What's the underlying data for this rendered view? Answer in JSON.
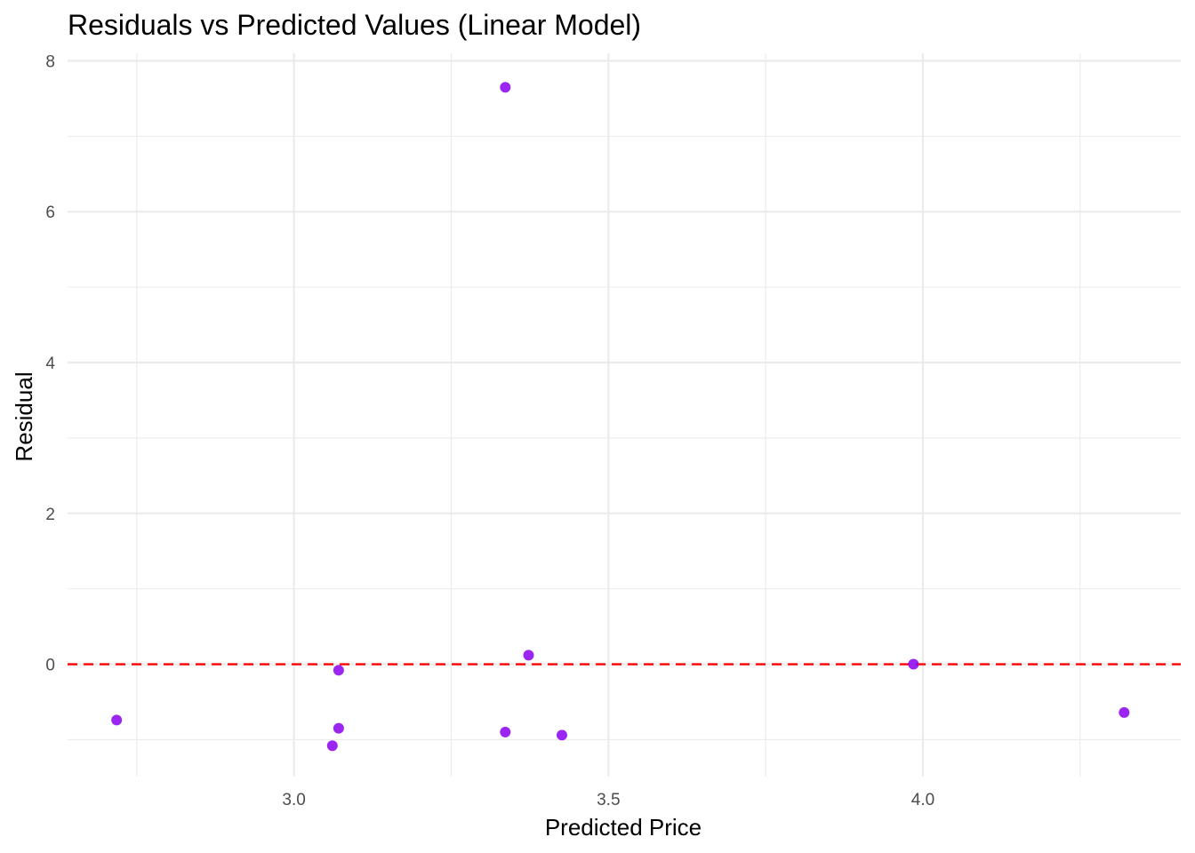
{
  "chart_data": {
    "type": "scatter",
    "title": "Residuals vs Predicted Values (Linear Model)",
    "xlabel": "Predicted Price",
    "ylabel": "Residual",
    "xlim": [
      2.64,
      4.41
    ],
    "ylim": [
      -1.49,
      8.1
    ],
    "x_ticks": [
      3.0,
      3.5,
      4.0
    ],
    "x_tick_labels": [
      "3.0",
      "3.5",
      "4.0"
    ],
    "x_minor_ticks": [
      2.75,
      3.25,
      3.75,
      4.25
    ],
    "y_ticks": [
      0,
      2,
      4,
      6,
      8
    ],
    "y_tick_labels": [
      "0",
      "2",
      "4",
      "6",
      "8"
    ],
    "y_minor_ticks": [
      -1,
      1,
      3,
      5,
      7
    ],
    "grid": true,
    "reference_line": {
      "y": 0,
      "style": "dashed",
      "color": "#ff0000"
    },
    "point_color": "#8b00ee",
    "points": [
      {
        "x": 2.718,
        "y": -0.74
      },
      {
        "x": 3.061,
        "y": -1.08
      },
      {
        "x": 3.071,
        "y": -0.85
      },
      {
        "x": 3.071,
        "y": -0.08
      },
      {
        "x": 3.336,
        "y": 7.65
      },
      {
        "x": 3.336,
        "y": -0.9
      },
      {
        "x": 3.373,
        "y": 0.12
      },
      {
        "x": 3.426,
        "y": -0.94
      },
      {
        "x": 3.985,
        "y": 0.0
      },
      {
        "x": 4.32,
        "y": -0.64
      }
    ]
  }
}
